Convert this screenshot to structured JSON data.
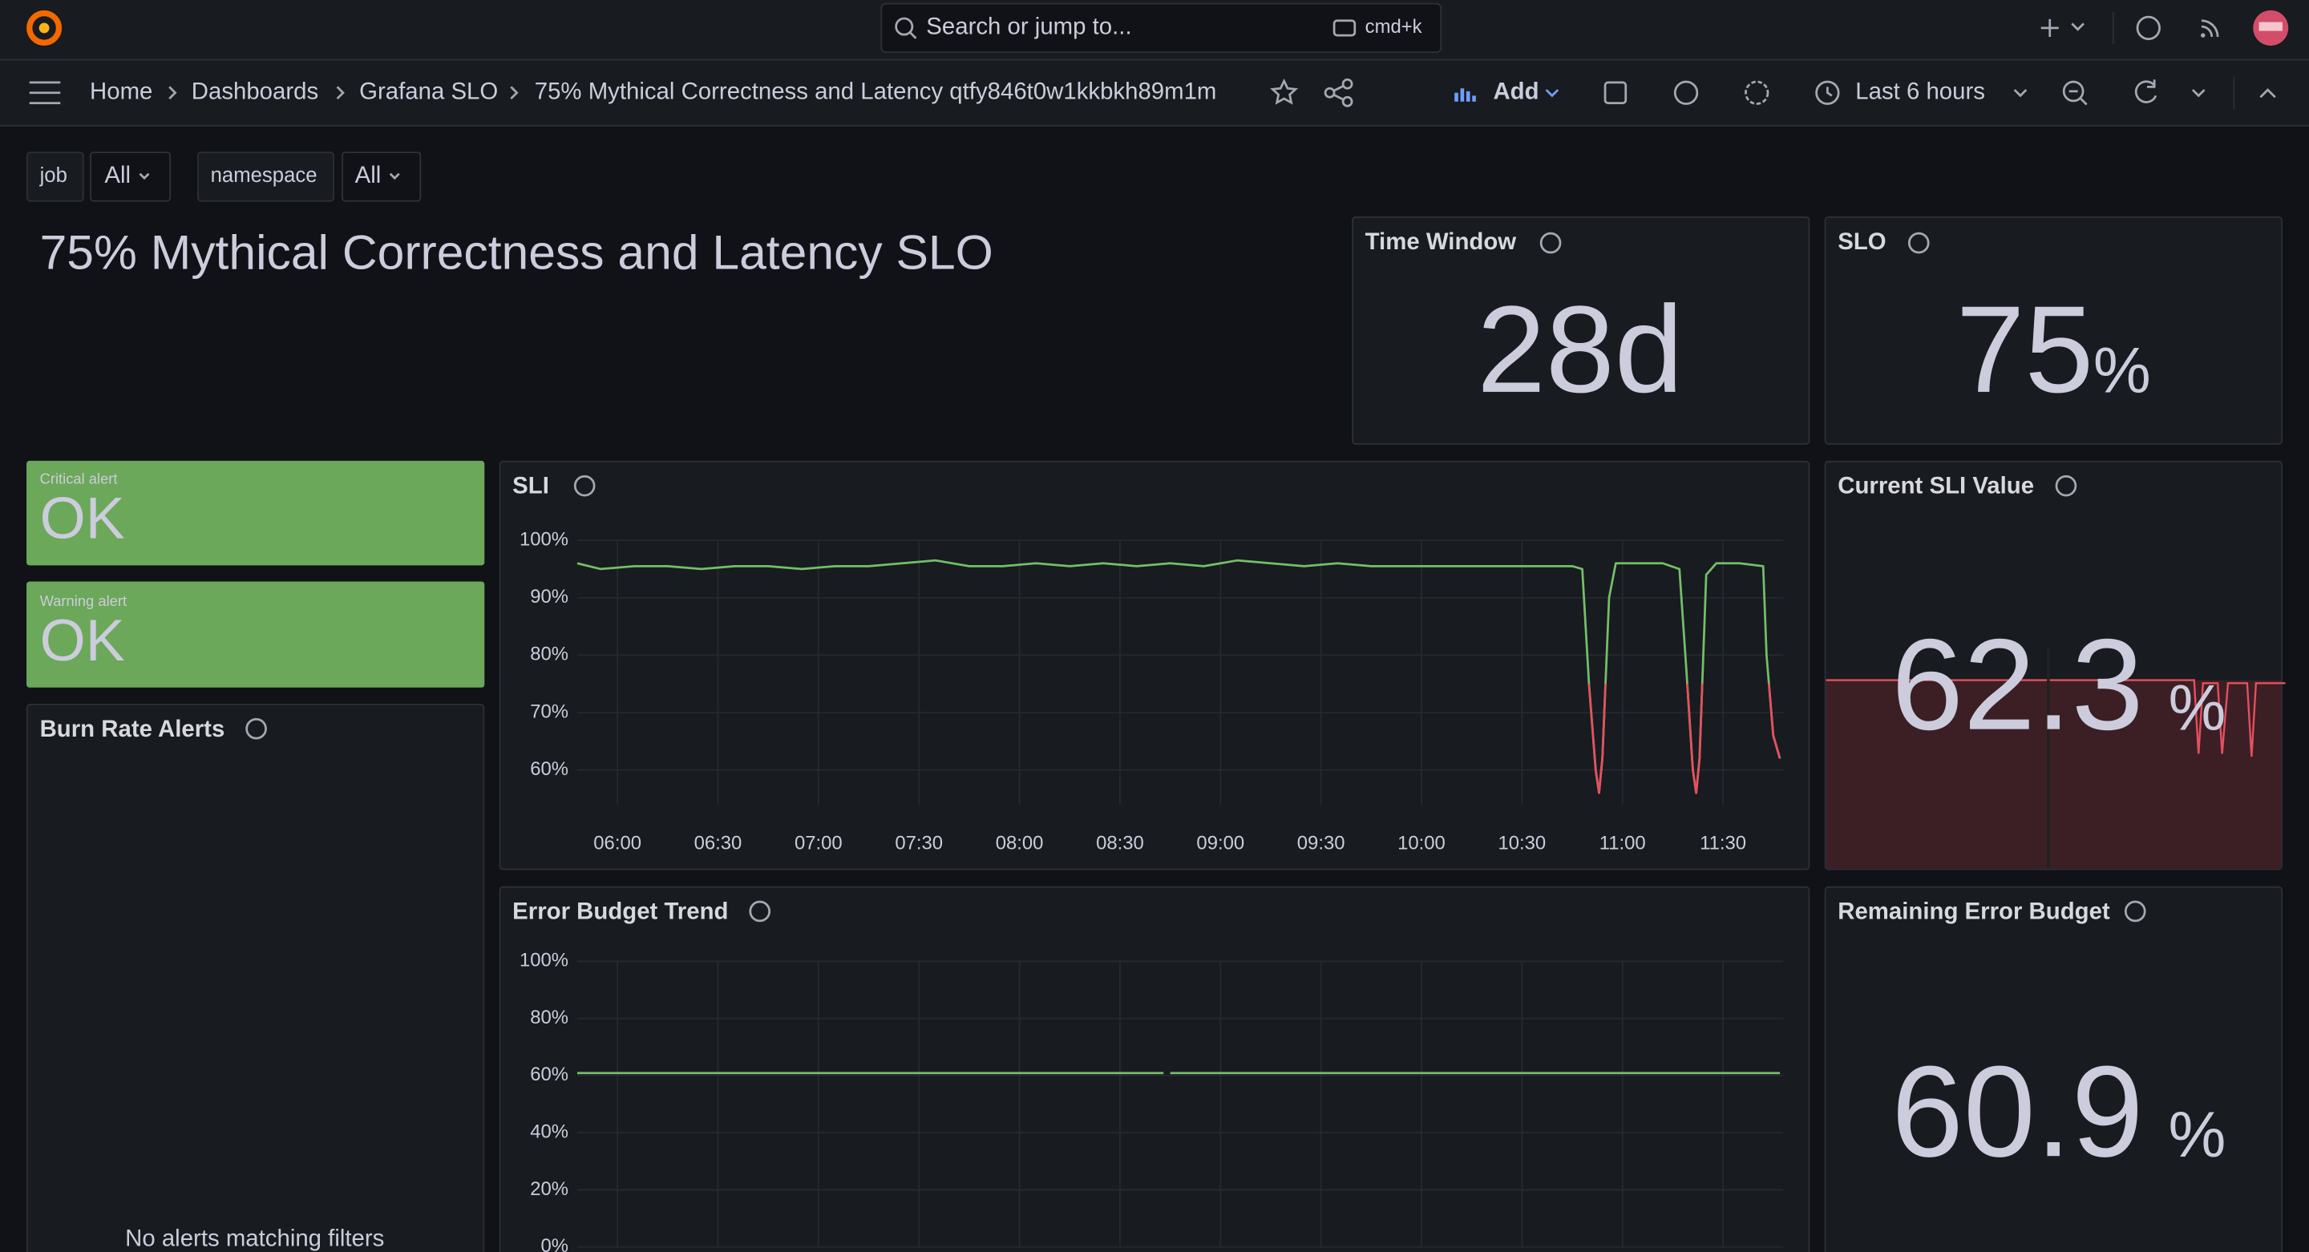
{
  "topbar": {
    "search_placeholder": "Search or jump to...",
    "shortcut": "cmd+k"
  },
  "breadcrumbs": [
    "Home",
    "Dashboards",
    "Grafana SLO",
    "75% Mythical Correctness and Latency qtfy846t0w1kkbkh89m1m"
  ],
  "toolbar": {
    "add": "Add",
    "time_range": "Last 6 hours"
  },
  "variables": [
    {
      "label": "job",
      "value": "All"
    },
    {
      "label": "namespace",
      "value": "All"
    }
  ],
  "dashboard_title": "75% Mythical Correctness and Latency SLO",
  "panels": {
    "time_window": {
      "title": "Time Window",
      "value": "28d"
    },
    "slo": {
      "title": "SLO",
      "value": 75,
      "unit": "%"
    },
    "critical_alert": {
      "label": "Critical alert",
      "status": "OK"
    },
    "warning_alert": {
      "label": "Warning alert",
      "status": "OK"
    },
    "burn_rate": {
      "title": "Burn Rate Alerts",
      "empty": "No alerts matching filters"
    },
    "sli": {
      "type": "line",
      "title": "SLI",
      "color": "#73bf69",
      "threshold_color": "#e5505f",
      "xlim": [
        "05:48",
        "11:48"
      ],
      "xticks": [
        {
          "value": "06:00",
          "label": "06:00"
        },
        {
          "value": "06:30",
          "label": "06:30"
        },
        {
          "value": "07:00",
          "label": "07:00"
        },
        {
          "value": "07:30",
          "label": "07:30"
        },
        {
          "value": "08:00",
          "label": "08:00"
        },
        {
          "value": "08:30",
          "label": "08:30"
        },
        {
          "value": "09:00",
          "label": "09:00"
        },
        {
          "value": "09:30",
          "label": "09:30"
        },
        {
          "value": "10:00",
          "label": "10:00"
        },
        {
          "value": "10:30",
          "label": "10:30"
        },
        {
          "value": "11:00",
          "label": "11:00"
        },
        {
          "value": "11:30",
          "label": "11:30"
        }
      ],
      "ylim": [
        54,
        100
      ],
      "yticks": [
        {
          "value": 60,
          "label": "60%"
        },
        {
          "value": 70,
          "label": "70%"
        },
        {
          "value": 80,
          "label": "80%"
        },
        {
          "value": 90,
          "label": "90%"
        },
        {
          "value": 100,
          "label": "100%"
        }
      ],
      "x": [
        "05:48",
        "05:55",
        "06:05",
        "06:15",
        "06:25",
        "06:35",
        "06:45",
        "06:55",
        "07:05",
        "07:15",
        "07:25",
        "07:35",
        "07:45",
        "07:55",
        "08:05",
        "08:15",
        "08:25",
        "08:35",
        "08:45",
        "08:55",
        "09:05",
        "09:15",
        "09:25",
        "09:35",
        "09:45",
        "09:55",
        "10:05",
        "10:15",
        "10:25",
        "10:35",
        "10:45",
        "10:48",
        "10:50",
        "10:52",
        "10:53",
        "10:54",
        "10:56",
        "10:58",
        "11:05",
        "11:12",
        "11:17",
        "11:19",
        "11:21",
        "11:22",
        "11:23",
        "11:25",
        "11:28",
        "11:35",
        "11:42",
        "11:43",
        "11:45",
        "11:47"
      ],
      "values": [
        96,
        95,
        95.5,
        95.5,
        95,
        95.5,
        95.5,
        95,
        95.5,
        95.5,
        96,
        96.5,
        95.5,
        95.5,
        96,
        95.5,
        96,
        95.5,
        96,
        95.5,
        96.5,
        96,
        95.5,
        96,
        95.5,
        95.5,
        95.5,
        95.5,
        95.5,
        95.5,
        95.5,
        95,
        75,
        60,
        56,
        62,
        90,
        96,
        96,
        96,
        95,
        78,
        60,
        56,
        62,
        94,
        96,
        96,
        95.5,
        80,
        66,
        62
      ]
    },
    "current_sli": {
      "title": "Current SLI Value",
      "value": 62.3,
      "unit": "%"
    },
    "error_budget_trend": {
      "type": "line",
      "title": "Error Budget Trend",
      "color": "#73bf69",
      "xlim": [
        "05:48",
        "11:48"
      ],
      "ylim": [
        0,
        100
      ],
      "yticks": [
        {
          "value": 0,
          "label": "0%"
        },
        {
          "value": 20,
          "label": "20%"
        },
        {
          "value": 40,
          "label": "40%"
        },
        {
          "value": 60,
          "label": "60%"
        },
        {
          "value": 80,
          "label": "80%"
        },
        {
          "value": 100,
          "label": "100%"
        }
      ],
      "x": [
        "05:48",
        "08:43",
        "08:44",
        "08:45",
        "11:47"
      ],
      "values": [
        60.9,
        60.9,
        null,
        60.9,
        60.9
      ]
    },
    "remaining_error_budget": {
      "title": "Remaining Error Budget",
      "value": 60.9,
      "unit": "%"
    }
  }
}
